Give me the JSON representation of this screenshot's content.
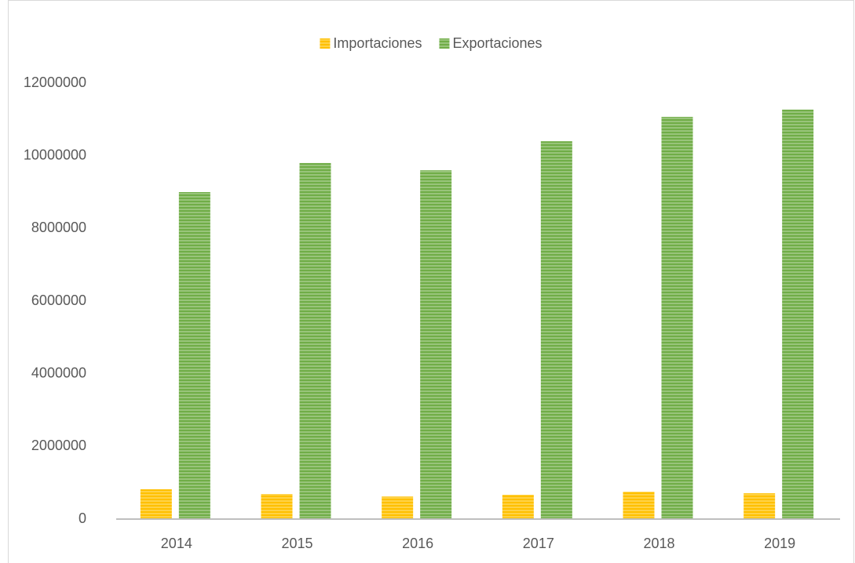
{
  "chart_data": {
    "type": "bar",
    "categories": [
      "2014",
      "2015",
      "2016",
      "2017",
      "2018",
      "2019"
    ],
    "series": [
      {
        "name": "Importaciones",
        "color": "#ffc000",
        "values": [
          820000,
          690000,
          620000,
          670000,
          750000,
          710000
        ]
      },
      {
        "name": "Exportaciones",
        "color": "#70ad47",
        "values": [
          9000000,
          9800000,
          9600000,
          10400000,
          11070000,
          11270000
        ]
      }
    ],
    "ylim": [
      0,
      12000000
    ],
    "yticks": [
      0,
      2000000,
      4000000,
      6000000,
      8000000,
      10000000,
      12000000
    ],
    "grid": false,
    "legend": "top"
  }
}
